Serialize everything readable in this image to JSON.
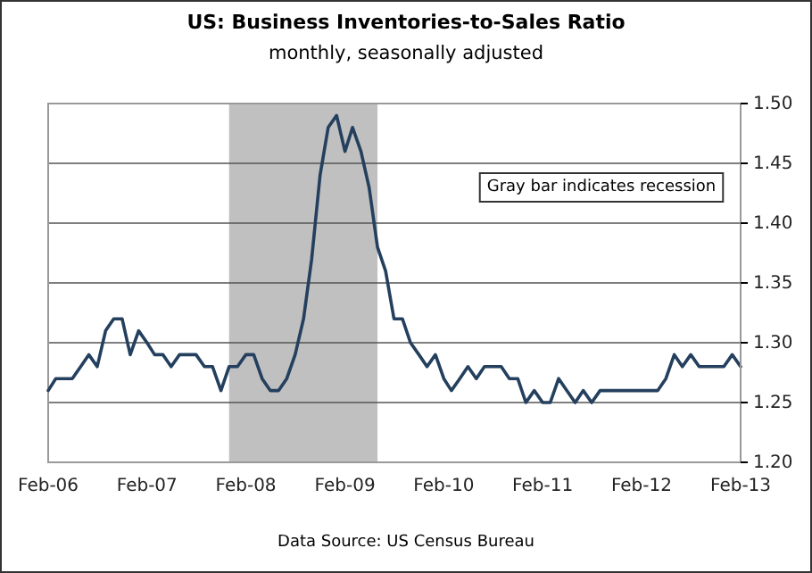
{
  "chart_data": {
    "type": "line",
    "title": "US: Business Inventories-to-Sales Ratio",
    "subtitle": "monthly, seasonally adjusted",
    "annotations": [
      "Gray bar indicates recession",
      "Data Source: US Census Bureau"
    ],
    "x": [
      "2006-02",
      "2006-03",
      "2006-04",
      "2006-05",
      "2006-06",
      "2006-07",
      "2006-08",
      "2006-09",
      "2006-10",
      "2006-11",
      "2006-12",
      "2007-01",
      "2007-02",
      "2007-03",
      "2007-04",
      "2007-05",
      "2007-06",
      "2007-07",
      "2007-08",
      "2007-09",
      "2007-10",
      "2007-11",
      "2007-12",
      "2008-01",
      "2008-02",
      "2008-03",
      "2008-04",
      "2008-05",
      "2008-06",
      "2008-07",
      "2008-08",
      "2008-09",
      "2008-10",
      "2008-11",
      "2008-12",
      "2009-01",
      "2009-02",
      "2009-03",
      "2009-04",
      "2009-05",
      "2009-06",
      "2009-07",
      "2009-08",
      "2009-09",
      "2009-10",
      "2009-11",
      "2009-12",
      "2010-01",
      "2010-02",
      "2010-03",
      "2010-04",
      "2010-05",
      "2010-06",
      "2010-07",
      "2010-08",
      "2010-09",
      "2010-10",
      "2010-11",
      "2010-12",
      "2011-01",
      "2011-02",
      "2011-03",
      "2011-04",
      "2011-05",
      "2011-06",
      "2011-07",
      "2011-08",
      "2011-09",
      "2011-10",
      "2011-11",
      "2011-12",
      "2012-01",
      "2012-02",
      "2012-03",
      "2012-04",
      "2012-05",
      "2012-06",
      "2012-07",
      "2012-08",
      "2012-09",
      "2012-10",
      "2012-11",
      "2012-12",
      "2013-01",
      "2013-02"
    ],
    "series": [
      {
        "color": "#24405e",
        "values": [
          1.26,
          1.27,
          1.27,
          1.27,
          1.28,
          1.29,
          1.28,
          1.31,
          1.32,
          1.32,
          1.29,
          1.31,
          1.3,
          1.29,
          1.29,
          1.28,
          1.29,
          1.29,
          1.29,
          1.28,
          1.28,
          1.26,
          1.28,
          1.28,
          1.29,
          1.29,
          1.27,
          1.26,
          1.26,
          1.27,
          1.29,
          1.32,
          1.37,
          1.44,
          1.48,
          1.49,
          1.46,
          1.48,
          1.46,
          1.43,
          1.38,
          1.36,
          1.32,
          1.32,
          1.3,
          1.29,
          1.28,
          1.29,
          1.27,
          1.26,
          1.27,
          1.28,
          1.27,
          1.28,
          1.28,
          1.28,
          1.27,
          1.27,
          1.25,
          1.26,
          1.25,
          1.25,
          1.27,
          1.26,
          1.25,
          1.26,
          1.25,
          1.26,
          1.26,
          1.26,
          1.26,
          1.26,
          1.26,
          1.26,
          1.26,
          1.27,
          1.29,
          1.28,
          1.29,
          1.28,
          1.28,
          1.28,
          1.28,
          1.29,
          1.28
        ]
      }
    ],
    "xlim": [
      "2006-02",
      "2013-02"
    ],
    "xticks": [
      {
        "value": "2006-02",
        "label": "Feb-06"
      },
      {
        "value": "2007-02",
        "label": "Feb-07"
      },
      {
        "value": "2008-02",
        "label": "Feb-08"
      },
      {
        "value": "2009-02",
        "label": "Feb-09"
      },
      {
        "value": "2010-02",
        "label": "Feb-10"
      },
      {
        "value": "2011-02",
        "label": "Feb-11"
      },
      {
        "value": "2012-02",
        "label": "Feb-12"
      },
      {
        "value": "2013-02",
        "label": "Feb-13"
      }
    ],
    "ylim": [
      1.2,
      1.5
    ],
    "yticks": [
      {
        "value": 1.2,
        "label": "1.20"
      },
      {
        "value": 1.25,
        "label": "1.25"
      },
      {
        "value": 1.3,
        "label": "1.30"
      },
      {
        "value": 1.35,
        "label": "1.35"
      },
      {
        "value": 1.4,
        "label": "1.40"
      },
      {
        "value": 1.45,
        "label": "1.45"
      },
      {
        "value": 1.5,
        "label": "1.50"
      }
    ],
    "bands": [
      {
        "axis": "x",
        "from": "2007-12",
        "to": "2009-06",
        "color": "#c0c0c0"
      }
    ],
    "grid": "y",
    "marker": "none",
    "line_style": "solid"
  }
}
